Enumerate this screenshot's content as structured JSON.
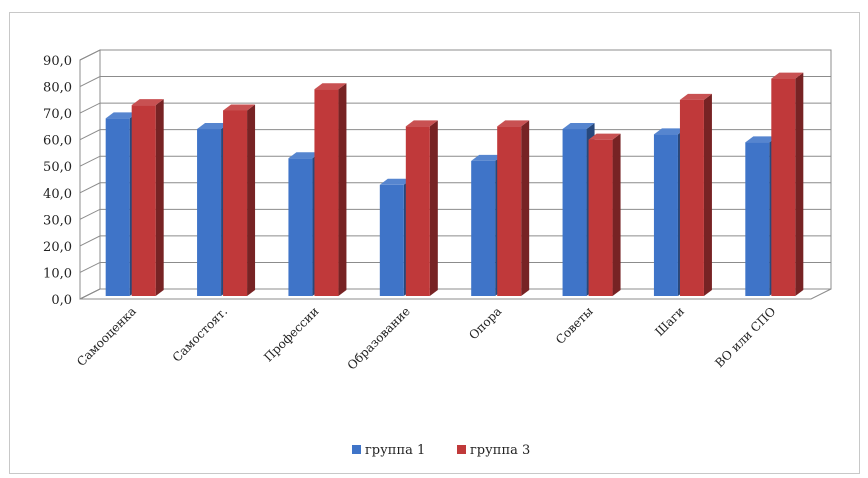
{
  "chart_data": {
    "type": "bar",
    "style": "3d-clustered-column",
    "categories": [
      "Самооценка",
      "Самостоят.",
      "Профессии",
      "Образование",
      "Опора",
      "Советы",
      "Шаги",
      "ВО или СПО"
    ],
    "series": [
      {
        "name": "группа 1",
        "color": "#3f74c8",
        "values": [
          68.0,
          64.0,
          53.0,
          43.0,
          52.0,
          64.0,
          62.0,
          59.0
        ]
      },
      {
        "name": "группа 3",
        "color": "#c0393a",
        "values": [
          73.0,
          71.0,
          79.0,
          65.0,
          65.0,
          60.0,
          75.0,
          83.0
        ]
      }
    ],
    "y_ticks": [
      "0,0",
      "10,0",
      "20,0",
      "30,0",
      "40,0",
      "50,0",
      "60,0",
      "70,0",
      "80,0",
      "90,0"
    ],
    "ylim": [
      0,
      90
    ],
    "grid": true,
    "legend_position": "bottom",
    "title": "",
    "xlabel": "",
    "ylabel": ""
  }
}
